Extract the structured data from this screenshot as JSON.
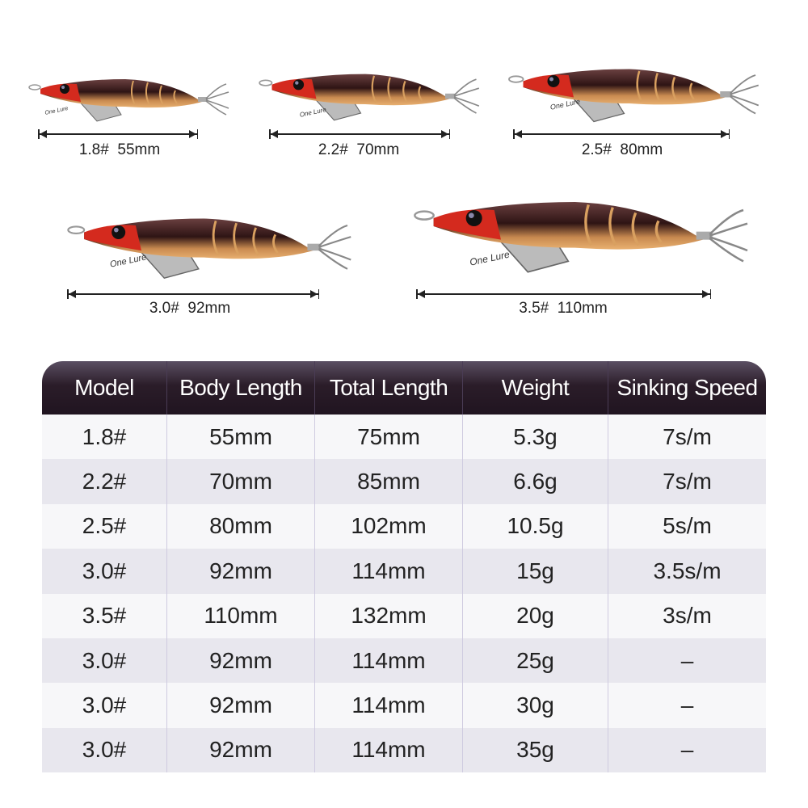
{
  "lures": [
    {
      "label": "1.8#  55mm"
    },
    {
      "label": "2.2#  70mm"
    },
    {
      "label": "2.5#  80mm"
    },
    {
      "label": "3.0#  92mm"
    },
    {
      "label": "3.5#  110mm"
    }
  ],
  "lure_brand": "One Lure",
  "colors": {
    "header_dark": "#201420",
    "header_light": "#5b4f63",
    "row_odd": "#f7f7f9",
    "row_even": "#e8e7ee",
    "lure_head": "#d42a1e",
    "lure_body": "#3a1c1c",
    "lure_belly": "#e0a060"
  },
  "table": {
    "headers": [
      "Model",
      "Body Length",
      "Total Length",
      "Weight",
      "Sinking Speed"
    ],
    "rows": [
      [
        "1.8#",
        "55mm",
        "75mm",
        "5.3g",
        "7s/m"
      ],
      [
        "2.2#",
        "70mm",
        "85mm",
        "6.6g",
        "7s/m"
      ],
      [
        "2.5#",
        "80mm",
        "102mm",
        "10.5g",
        "5s/m"
      ],
      [
        "3.0#",
        "92mm",
        "114mm",
        "15g",
        "3.5s/m"
      ],
      [
        "3.5#",
        "110mm",
        "132mm",
        "20g",
        "3s/m"
      ],
      [
        "3.0#",
        "92mm",
        "114mm",
        "25g",
        "–"
      ],
      [
        "3.0#",
        "92mm",
        "114mm",
        "30g",
        "–"
      ],
      [
        "3.0#",
        "92mm",
        "114mm",
        "35g",
        "–"
      ]
    ]
  }
}
